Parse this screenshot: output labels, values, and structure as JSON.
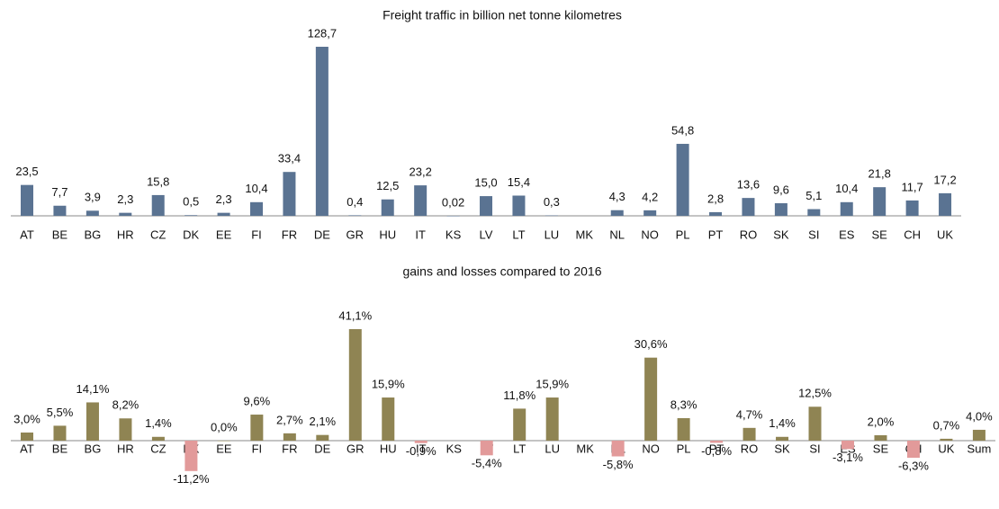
{
  "chart_data": [
    {
      "type": "bar",
      "title": "Freight traffic  in billion net tonne kilometres",
      "categories": [
        "AT",
        "BE",
        "BG",
        "HR",
        "CZ",
        "DK",
        "EE",
        "FI",
        "FR",
        "DE",
        "GR",
        "HU",
        "IT",
        "KS",
        "LV",
        "LT",
        "LU",
        "MK",
        "NL",
        "NO",
        "PL",
        "PT",
        "RO",
        "SK",
        "SI",
        "ES",
        "SE",
        "CH",
        "UK"
      ],
      "values": [
        23.5,
        7.7,
        3.9,
        2.3,
        15.8,
        0.5,
        2.3,
        10.4,
        33.4,
        128.7,
        0.4,
        12.5,
        23.2,
        0.02,
        15.0,
        15.4,
        0.3,
        null,
        4.3,
        4.2,
        54.8,
        2.8,
        13.6,
        9.6,
        5.1,
        10.4,
        21.8,
        11.7,
        17.2
      ],
      "value_labels": [
        "23,5",
        "7,7",
        "3,9",
        "2,3",
        "15,8",
        "0,5",
        "2,3",
        "10,4",
        "33,4",
        "128,7",
        "0,4",
        "12,5",
        "23,2",
        "0,02",
        "15,0",
        "15,4",
        "0,3",
        null,
        "4,3",
        "4,2",
        "54,8",
        "2,8",
        "13,6",
        "9,6",
        "5,1",
        "10,4",
        "21,8",
        "11,7",
        "17,2"
      ],
      "color": "#5a7392"
    },
    {
      "type": "bar",
      "title": "gains and losses compared to 2016",
      "categories": [
        "AT",
        "BE",
        "BG",
        "HR",
        "CZ",
        "DK",
        "EE",
        "FI",
        "FR",
        "DE",
        "GR",
        "HU",
        "IT",
        "KS",
        "LV",
        "LT",
        "LU",
        "MK",
        "NL",
        "NO",
        "PL",
        "PT",
        "RO",
        "SK",
        "SI",
        "ES",
        "SE",
        "CH",
        "UK",
        "Sum"
      ],
      "values": [
        3.0,
        5.5,
        14.1,
        8.2,
        1.4,
        -11.2,
        0.0,
        9.6,
        2.7,
        2.1,
        41.1,
        15.9,
        -0.9,
        null,
        -5.4,
        11.8,
        15.9,
        null,
        -5.8,
        30.6,
        8.3,
        -0.8,
        4.7,
        1.4,
        12.5,
        -3.1,
        2.0,
        -6.3,
        0.7,
        4.0
      ],
      "value_labels": [
        "3,0%",
        "5,5%",
        "14,1%",
        "8,2%",
        "1,4%",
        "-11,2%",
        "0,0%",
        "9,6%",
        "2,7%",
        "2,1%",
        "41,1%",
        "15,9%",
        "-0,9%",
        null,
        "-5,4%",
        "11,8%",
        "15,9%",
        null,
        "-5,8%",
        "30,6%",
        "8,3%",
        "-0,8%",
        "4,7%",
        "1,4%",
        "12,5%",
        "-3,1%",
        "2,0%",
        "-6,3%",
        "0,7%",
        "4,0%"
      ],
      "color": "#8f8453",
      "negative_color": "#e29a9a"
    }
  ]
}
